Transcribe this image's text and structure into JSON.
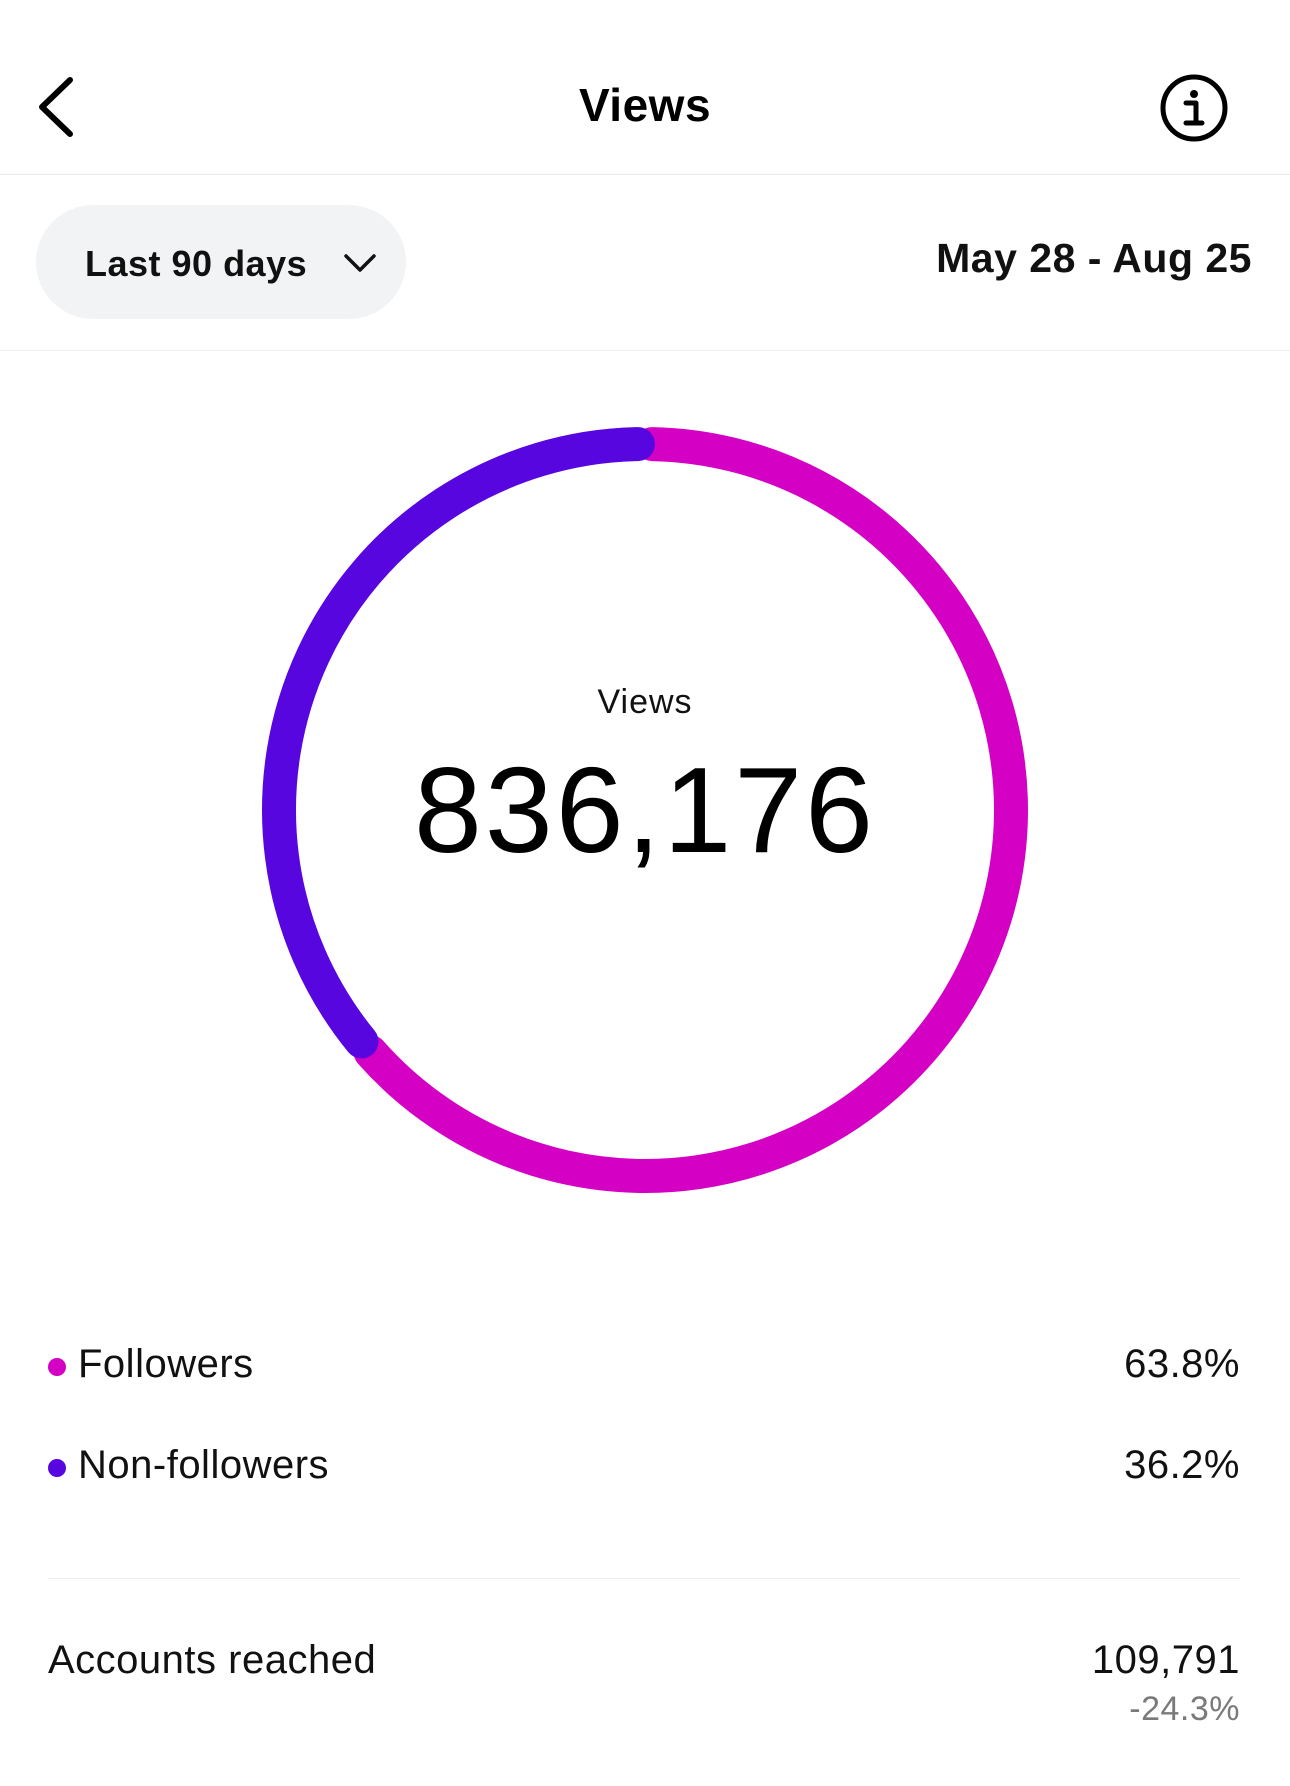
{
  "header": {
    "title": "Views",
    "back_icon": "chevron-left-icon",
    "info_icon": "info-circle-icon"
  },
  "filter": {
    "range_label": "Last 90 days",
    "range_icon": "chevron-down-icon",
    "date_range": "May 28 - Aug 25"
  },
  "donut": {
    "center_label": "Views",
    "total": "836,176"
  },
  "chart_data": {
    "type": "pie",
    "categories": [
      "Followers",
      "Non-followers"
    ],
    "values": [
      63.8,
      36.2
    ],
    "colors": [
      "#d400c3",
      "#5806e0"
    ]
  },
  "legend": [
    {
      "label": "Followers",
      "value": "63.8%",
      "color": "#d400c3"
    },
    {
      "label": "Non-followers",
      "value": "36.2%",
      "color": "#5806e0"
    }
  ],
  "metrics": {
    "accounts_reached": {
      "label": "Accounts reached",
      "value": "109,791",
      "change": "-24.3%"
    }
  }
}
